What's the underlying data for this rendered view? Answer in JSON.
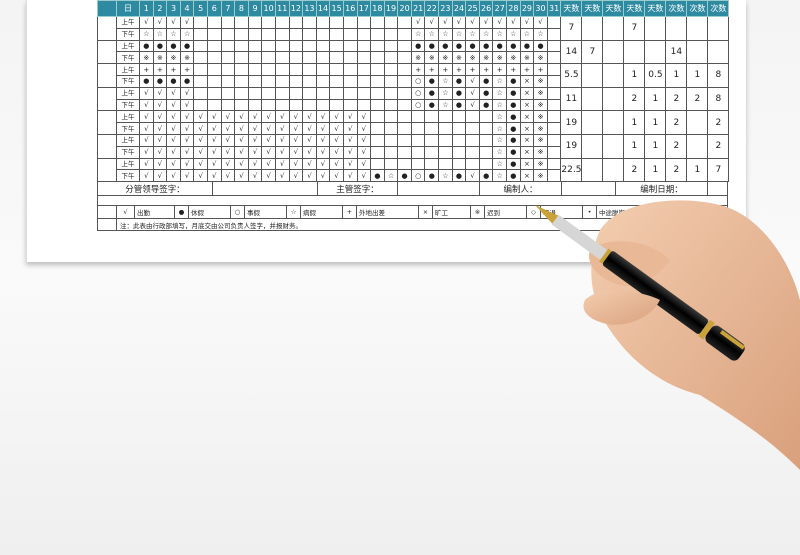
{
  "header": {
    "period_label": "日",
    "days": [
      "1",
      "2",
      "3",
      "4",
      "5",
      "6",
      "7",
      "8",
      "9",
      "10",
      "11",
      "12",
      "13",
      "14",
      "15",
      "16",
      "17",
      "18",
      "19",
      "20",
      "21",
      "22",
      "23",
      "24",
      "25",
      "26",
      "27",
      "28",
      "29",
      "30",
      "31"
    ],
    "summary_headers": [
      "天数",
      "天数",
      "天数",
      "天数",
      "天数",
      "次数",
      "次数",
      "次数"
    ]
  },
  "periods": [
    "上午",
    "下午"
  ],
  "rows": [
    {
      "p": 0,
      "c": [
        "√",
        "√",
        "√",
        "√",
        "",
        "",
        "",
        "",
        "",
        "",
        "",
        "",
        "",
        "",
        "",
        "",
        "",
        "",
        "",
        "",
        "√",
        "√",
        "√",
        "√",
        "√",
        "√",
        "√",
        "√",
        "√",
        "√",
        ""
      ]
    },
    {
      "p": 1,
      "c": [
        "☆",
        "☆",
        "☆",
        "☆",
        "",
        "",
        "",
        "",
        "",
        "",
        "",
        "",
        "",
        "",
        "",
        "",
        "",
        "",
        "",
        "",
        "☆",
        "☆",
        "☆",
        "☆",
        "☆",
        "☆",
        "☆",
        "☆",
        "☆",
        "☆",
        ""
      ]
    },
    {
      "p": 0,
      "c": [
        "●",
        "●",
        "●",
        "●",
        "",
        "",
        "",
        "",
        "",
        "",
        "",
        "",
        "",
        "",
        "",
        "",
        "",
        "",
        "",
        "",
        "●",
        "●",
        "●",
        "●",
        "●",
        "●",
        "●",
        "●",
        "●",
        "●",
        ""
      ]
    },
    {
      "p": 1,
      "c": [
        "※",
        "※",
        "※",
        "※",
        "",
        "",
        "",
        "",
        "",
        "",
        "",
        "",
        "",
        "",
        "",
        "",
        "",
        "",
        "",
        "",
        "※",
        "※",
        "※",
        "※",
        "※",
        "※",
        "※",
        "※",
        "※",
        "※",
        ""
      ]
    },
    {
      "p": 0,
      "c": [
        "+",
        "+",
        "+",
        "+",
        "",
        "",
        "",
        "",
        "",
        "",
        "",
        "",
        "",
        "",
        "",
        "",
        "",
        "",
        "",
        "",
        "+",
        "+",
        "+",
        "+",
        "+",
        "+",
        "+",
        "+",
        "+",
        "+",
        ""
      ]
    },
    {
      "p": 1,
      "c": [
        "●",
        "●",
        "●",
        "●",
        "",
        "",
        "",
        "",
        "",
        "",
        "",
        "",
        "",
        "",
        "",
        "",
        "",
        "",
        "",
        "",
        "○",
        "●",
        "☆",
        "●",
        "√",
        "●",
        "☆",
        "●",
        "×",
        "※",
        ""
      ]
    },
    {
      "p": 0,
      "c": [
        "√",
        "√",
        "√",
        "√",
        "",
        "",
        "",
        "",
        "",
        "",
        "",
        "",
        "",
        "",
        "",
        "",
        "",
        "",
        "",
        "",
        "○",
        "●",
        "☆",
        "●",
        "√",
        "●",
        "☆",
        "●",
        "×",
        "※",
        ""
      ]
    },
    {
      "p": 1,
      "c": [
        "√",
        "√",
        "√",
        "√",
        "",
        "",
        "",
        "",
        "",
        "",
        "",
        "",
        "",
        "",
        "",
        "",
        "",
        "",
        "",
        "",
        "○",
        "●",
        "☆",
        "●",
        "√",
        "●",
        "☆",
        "●",
        "×",
        "※",
        ""
      ]
    },
    {
      "p": 0,
      "c": [
        "√",
        "√",
        "√",
        "√",
        "√",
        "√",
        "√",
        "√",
        "√",
        "√",
        "√",
        "√",
        "√",
        "√",
        "√",
        "√",
        "√",
        "",
        "",
        "",
        "",
        "",
        "",
        "",
        "",
        "",
        "☆",
        "●",
        "×",
        "※",
        ""
      ]
    },
    {
      "p": 1,
      "c": [
        "√",
        "√",
        "√",
        "√",
        "√",
        "√",
        "√",
        "√",
        "√",
        "√",
        "√",
        "√",
        "√",
        "√",
        "√",
        "√",
        "√",
        "",
        "",
        "",
        "",
        "",
        "",
        "",
        "",
        "",
        "☆",
        "●",
        "×",
        "※",
        ""
      ]
    },
    {
      "p": 0,
      "c": [
        "√",
        "√",
        "√",
        "√",
        "√",
        "√",
        "√",
        "√",
        "√",
        "√",
        "√",
        "√",
        "√",
        "√",
        "√",
        "√",
        "√",
        "",
        "",
        "",
        "",
        "",
        "",
        "",
        "",
        "",
        "☆",
        "●",
        "×",
        "※",
        ""
      ]
    },
    {
      "p": 1,
      "c": [
        "√",
        "√",
        "√",
        "√",
        "√",
        "√",
        "√",
        "√",
        "√",
        "√",
        "√",
        "√",
        "√",
        "√",
        "√",
        "√",
        "√",
        "",
        "",
        "",
        "",
        "",
        "",
        "",
        "",
        "",
        "☆",
        "●",
        "×",
        "※",
        ""
      ]
    },
    {
      "p": 0,
      "c": [
        "√",
        "√",
        "√",
        "√",
        "√",
        "√",
        "√",
        "√",
        "√",
        "√",
        "√",
        "√",
        "√",
        "√",
        "√",
        "√",
        "√",
        "",
        "",
        "",
        "",
        "",
        "",
        "",
        "",
        "",
        "☆",
        "●",
        "×",
        "※",
        ""
      ]
    },
    {
      "p": 1,
      "c": [
        "√",
        "√",
        "√",
        "√",
        "√",
        "√",
        "√",
        "√",
        "√",
        "√",
        "√",
        "√",
        "√",
        "√",
        "√",
        "√",
        "√",
        "●",
        "☆",
        "●",
        "○",
        "●",
        "☆",
        "●",
        "√",
        "●",
        "☆",
        "●",
        "×",
        "※",
        ""
      ]
    }
  ],
  "summary": [
    [
      "7",
      "",
      "",
      "7",
      "",
      "",
      "",
      ""
    ],
    [
      "14",
      "7",
      "",
      "",
      "",
      "14",
      "",
      ""
    ],
    [
      "5.5",
      "",
      "",
      "1",
      "0.5",
      "1",
      "1",
      "8"
    ],
    [
      "11",
      "",
      "",
      "2",
      "1",
      "2",
      "2",
      "8"
    ],
    [
      "19",
      "",
      "",
      "1",
      "1",
      "2",
      "",
      "2"
    ],
    [
      "19",
      "",
      "",
      "1",
      "1",
      "2",
      "",
      "2"
    ],
    [
      "22.5",
      "",
      "",
      "2",
      "1",
      "2",
      "1",
      "7"
    ]
  ],
  "signatures": {
    "leader": "分管领导签字：",
    "supervisor": "主管签字：",
    "editor": "编制人：",
    "date": "编制日期："
  },
  "legend": [
    [
      "√",
      "出勤"
    ],
    [
      "●",
      "休假"
    ],
    [
      "○",
      "事假"
    ],
    [
      "☆",
      "病假"
    ],
    [
      "+",
      "外地出差"
    ],
    [
      "×",
      "旷工"
    ],
    [
      "※",
      "迟到"
    ],
    [
      "◇",
      "早退"
    ],
    [
      "•",
      "中途脱岗"
    ],
    [
      "▲",
      ""
    ]
  ],
  "note": "注：此表由行政部填写，月底交由公司负责人签字，并报财务。",
  "colors": {
    "header": "#2e8aa0"
  }
}
